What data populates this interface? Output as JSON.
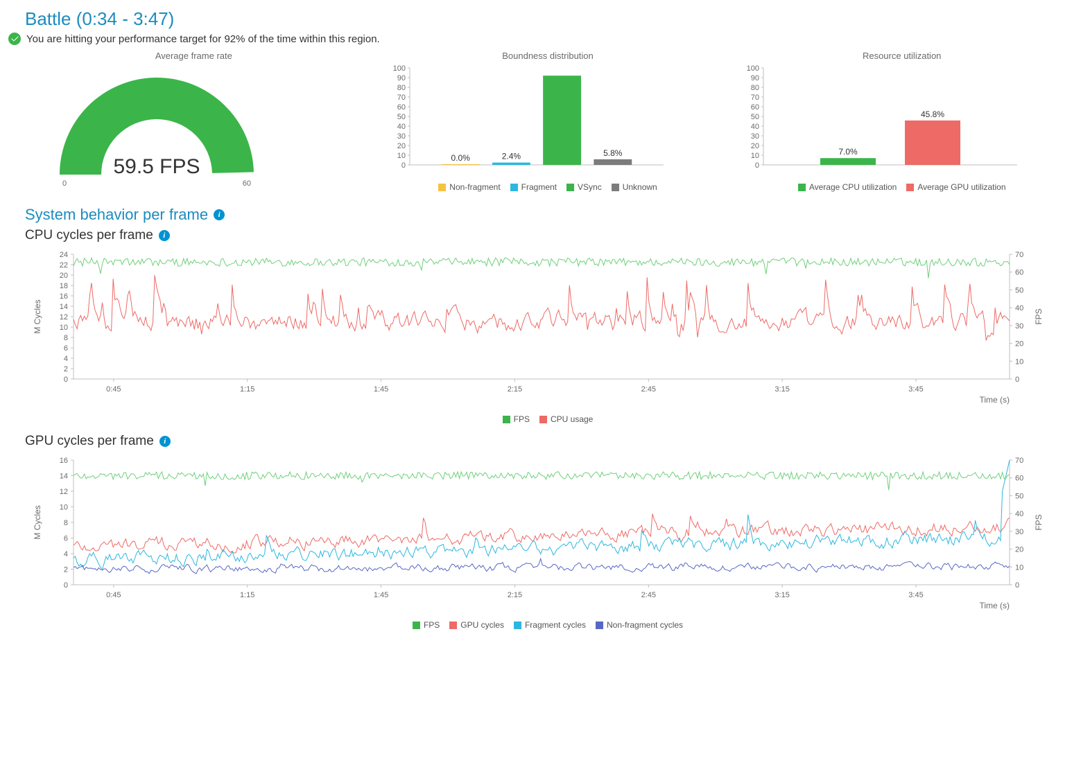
{
  "header": {
    "title": "Battle (0:34 - 3:47)",
    "status": "You are hitting your performance target for 92% of the time within this region.",
    "status_color": "#3bb54a"
  },
  "gauge": {
    "title": "Average frame rate",
    "value_text": "59.5 FPS",
    "min": 0,
    "max": 60,
    "value": 59.5,
    "arc_color": "#3bb54a",
    "track_color": "#3bb54a"
  },
  "boundness": {
    "title": "Boundness distribution",
    "ylim": [
      0,
      100
    ],
    "ytick_step": 10,
    "bars": [
      {
        "label": "Non-fragment",
        "value": 0.0,
        "value_label": "0.0%",
        "color": "#f6c244"
      },
      {
        "label": "Fragment",
        "value": 2.4,
        "value_label": "2.4%",
        "color": "#2cb7e0"
      },
      {
        "label": "VSync",
        "value": 92.0,
        "value_label": "",
        "color": "#3bb54a"
      },
      {
        "label": "Unknown",
        "value": 5.8,
        "value_label": "5.8%",
        "color": "#7c7c7c"
      }
    ],
    "legend": [
      {
        "label": "Non-fragment",
        "color": "#f6c244"
      },
      {
        "label": "Fragment",
        "color": "#2cb7e0"
      },
      {
        "label": "VSync",
        "color": "#3bb54a"
      },
      {
        "label": "Unknown",
        "color": "#7c7c7c"
      }
    ]
  },
  "utilization": {
    "title": "Resource utilization",
    "ylim": [
      0,
      100
    ],
    "ytick_step": 10,
    "bars": [
      {
        "label": "Average CPU utilization",
        "value": 7.0,
        "value_label": "7.0%",
        "color": "#3bb54a"
      },
      {
        "label": "Average GPU utilization",
        "value": 45.8,
        "value_label": "45.8%",
        "color": "#ed6a66"
      }
    ],
    "legend": [
      {
        "label": "Average CPU utilization",
        "color": "#3bb54a"
      },
      {
        "label": "Average GPU utilization",
        "color": "#ed6a66"
      }
    ]
  },
  "section_title": "System behavior per frame",
  "cpu_chart": {
    "title": "CPU cycles per frame",
    "xlabel": "Time (s)",
    "ylabel_left": "M Cycles",
    "ylabel_right": "FPS",
    "x_ticks": [
      "0:45",
      "1:15",
      "1:45",
      "2:15",
      "2:45",
      "3:15",
      "3:45"
    ],
    "y_left": {
      "min": 0,
      "max": 24,
      "step": 2
    },
    "y_right": {
      "min": 0,
      "max": 70,
      "step": 10
    },
    "legend": [
      {
        "label": "FPS",
        "color": "#3bb54a"
      },
      {
        "label": "CPU usage",
        "color": "#ed6a66"
      }
    ],
    "fps_baseline": 22.5,
    "fps_noise": 0.8,
    "fps_color": "#6fd07b",
    "cpu_color": "#ed6a66",
    "cpu_base": 11,
    "cpu_amplitude": 7,
    "cpu_floor": 4,
    "cpu_ceil": 25,
    "grid_color": "#e7e7e7",
    "axis_color": "#bfbfbf",
    "n_points": 520
  },
  "gpu_chart": {
    "title": "GPU cycles per frame",
    "xlabel": "Time (s)",
    "ylabel_left": "M Cycles",
    "ylabel_right": "FPS",
    "x_ticks": [
      "0:45",
      "1:15",
      "1:45",
      "2:15",
      "2:45",
      "3:15",
      "3:45"
    ],
    "y_left": {
      "min": 0,
      "max": 16,
      "step": 2
    },
    "y_right": {
      "min": 0,
      "max": 70,
      "step": 10
    },
    "legend": [
      {
        "label": "FPS",
        "color": "#3bb54a"
      },
      {
        "label": "GPU cycles",
        "color": "#ed6a66"
      },
      {
        "label": "Fragment cycles",
        "color": "#2cb7e0"
      },
      {
        "label": "Non-fragment cycles",
        "color": "#5867c4"
      }
    ],
    "fps_baseline": 14,
    "fps_noise": 0.5,
    "fps_color": "#6fd07b",
    "series": [
      {
        "name": "gpu",
        "color": "#ed6a66",
        "base_start": 5.0,
        "base_end": 7.5,
        "noise": 0.7,
        "spike_prob": 0.03,
        "spike_mag": 3.0
      },
      {
        "name": "fragment",
        "color": "#2cb7e0",
        "base_start": 3.2,
        "base_end": 6.0,
        "noise": 0.7,
        "spike_prob": 0.03,
        "spike_mag": 3.5
      },
      {
        "name": "nonfragment",
        "color": "#5867c4",
        "base_start": 2.0,
        "base_end": 2.3,
        "noise": 0.4,
        "spike_prob": 0.015,
        "spike_mag": 1.0
      }
    ],
    "end_spike": 16,
    "grid_color": "#e7e7e7",
    "axis_color": "#bfbfbf",
    "n_points": 520
  }
}
